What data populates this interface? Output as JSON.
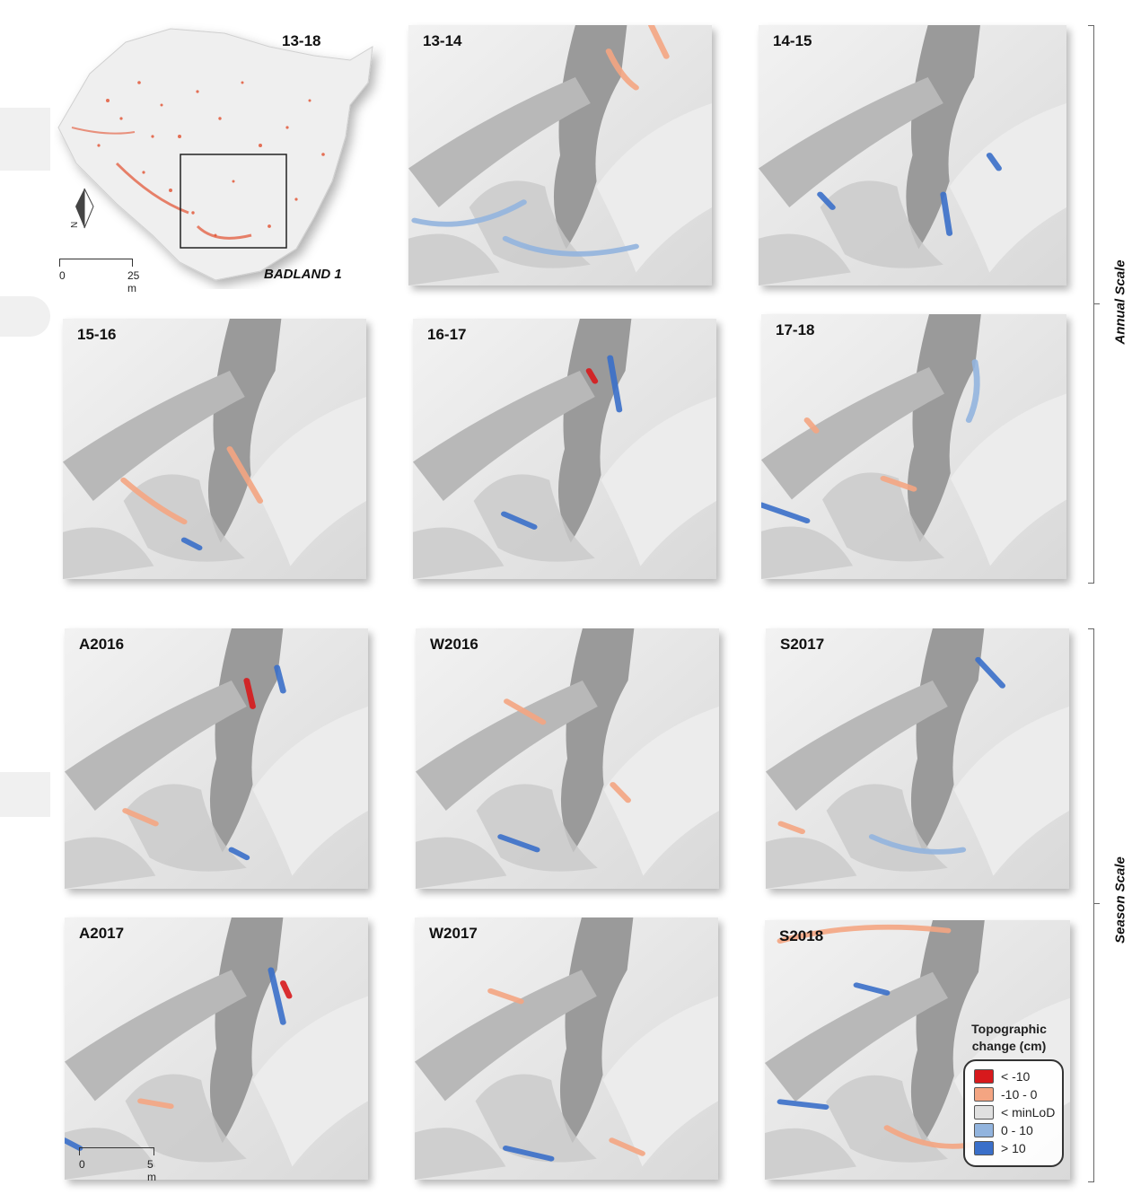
{
  "overview": {
    "period": "13-18",
    "site": "BADLAND 1",
    "north": "N",
    "scale": {
      "start": "0",
      "end": "25 m"
    }
  },
  "panels": [
    {
      "label": "13-14",
      "scale": "annual"
    },
    {
      "label": "14-15",
      "scale": "annual"
    },
    {
      "label": "15-16",
      "scale": "annual"
    },
    {
      "label": "16-17",
      "scale": "annual"
    },
    {
      "label": "17-18",
      "scale": "annual"
    },
    {
      "label": "A2016",
      "scale": "season"
    },
    {
      "label": "W2016",
      "scale": "season"
    },
    {
      "label": "S2017",
      "scale": "season"
    },
    {
      "label": "A2017",
      "scale": "season"
    },
    {
      "label": "W2017",
      "scale": "season"
    },
    {
      "label": "S2018",
      "scale": "season"
    }
  ],
  "panel_scale": {
    "start": "0",
    "end": "5 m"
  },
  "scale_labels": {
    "annual": "Annual Scale",
    "season": "Season Scale"
  },
  "legend": {
    "title_line1": "Topographic",
    "title_line2": "change (cm)",
    "items": [
      {
        "label": "< -10",
        "color": "#d7191c"
      },
      {
        "label": "-10 - 0",
        "color": "#f4a582"
      },
      {
        "label": "< minLoD",
        "color": "#e0e0e0"
      },
      {
        "label": "0 - 10",
        "color": "#92b4de"
      },
      {
        "label": "> 10",
        "color": "#3a6fc9"
      }
    ]
  },
  "colors": {
    "erosion_strong": "#d7191c",
    "erosion": "#f4a582",
    "deposition": "#92b4de",
    "deposition_strong": "#3a6fc9"
  }
}
